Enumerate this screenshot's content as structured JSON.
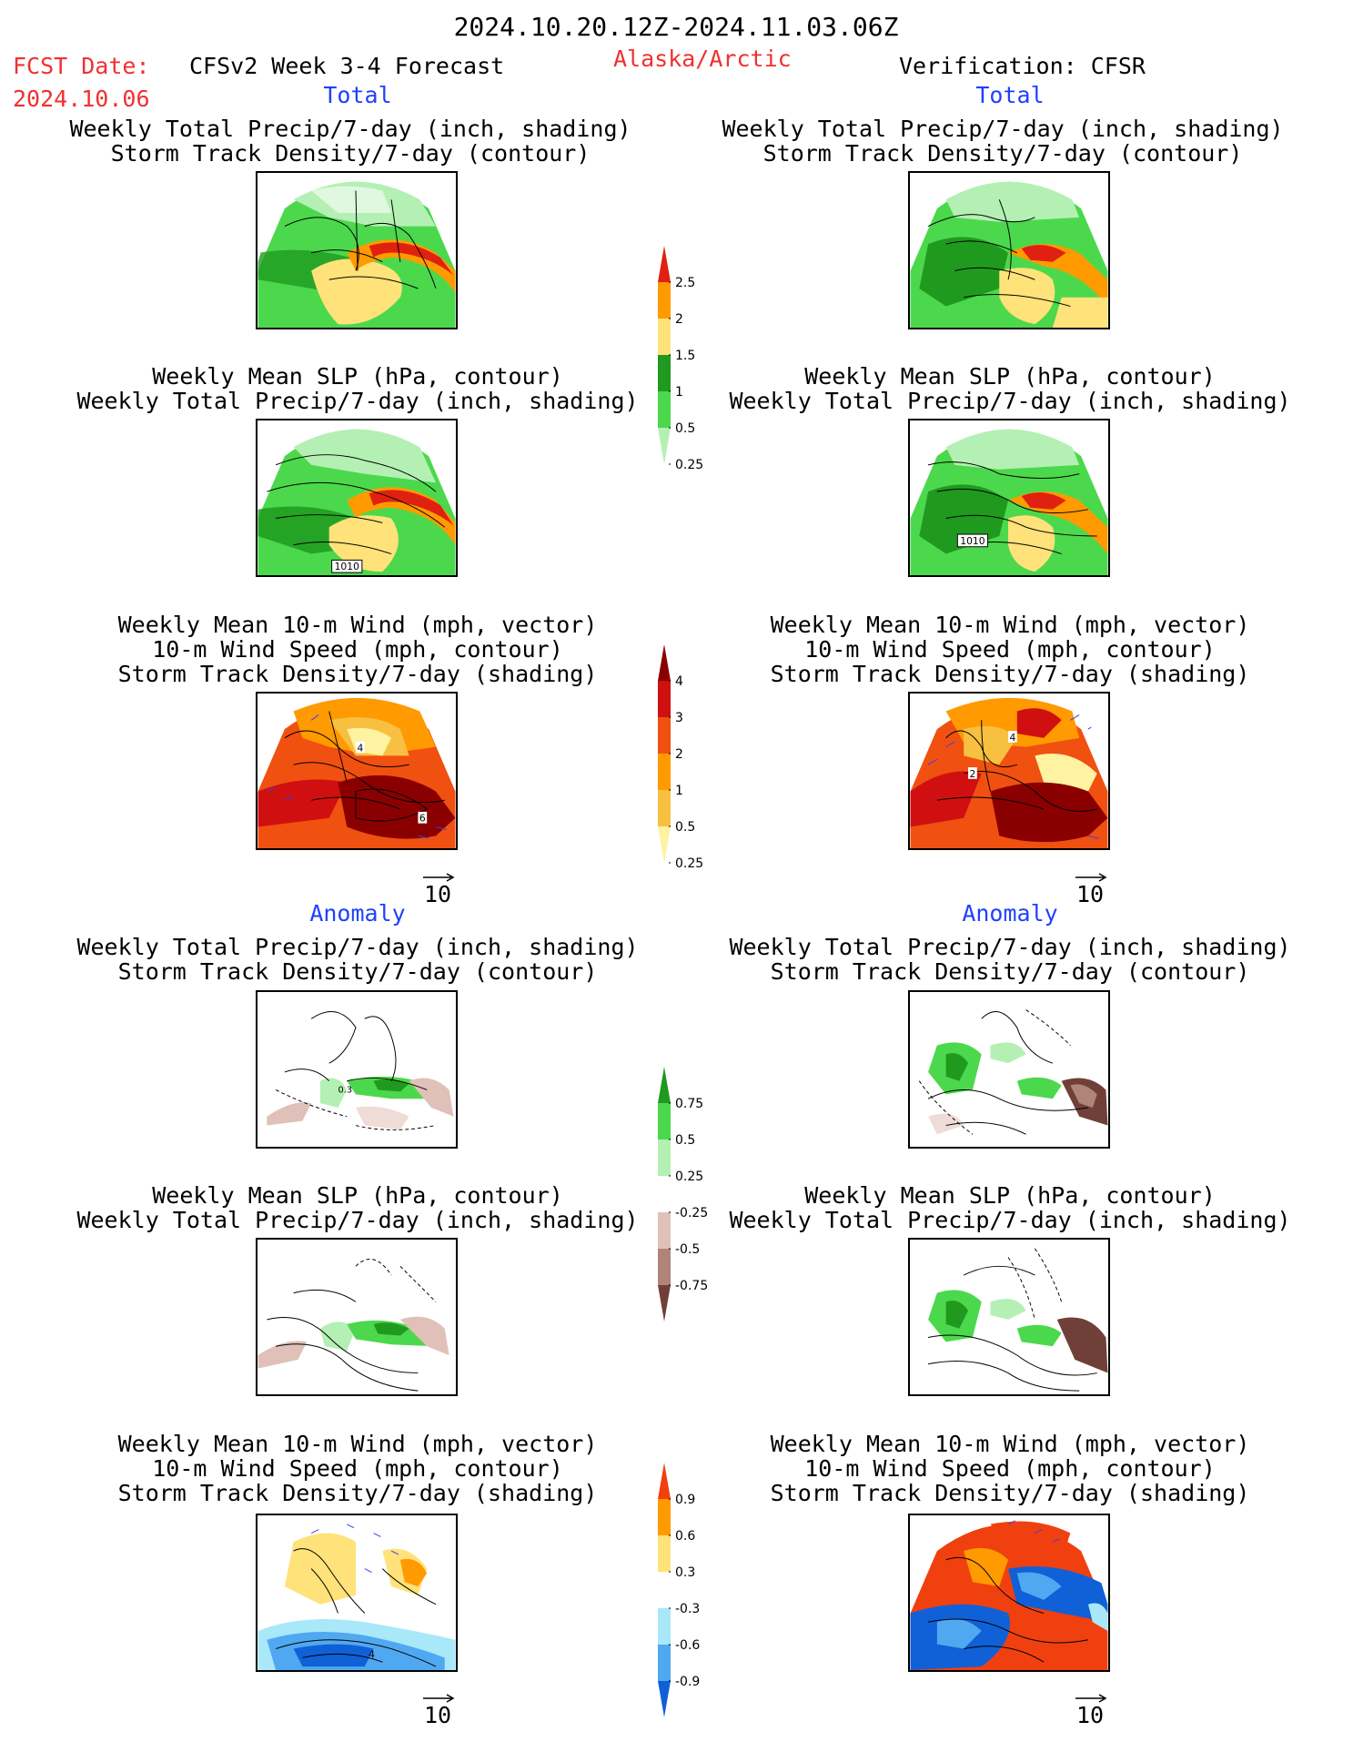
{
  "header": {
    "period": "2024.10.20.12Z-2024.11.03.06Z",
    "fcst_label": "FCST Date:",
    "fcst_date": "2024.10.06",
    "model": "CFSv2 Week 3-4 Forecast",
    "region": "Alaska/Arctic",
    "verification": "Verification: CFSR"
  },
  "sections": {
    "total": "Total",
    "anomaly": "Anomaly"
  },
  "titles": {
    "precip_storm": [
      "Weekly Total Precip/7-day (inch, shading)",
      "Storm Track Density/7-day (contour)"
    ],
    "slp_precip": [
      "Weekly Mean SLP (hPa, contour)",
      "Weekly Total Precip/7-day (inch, shading)"
    ],
    "wind_storm": [
      "Weekly Mean 10-m Wind (mph, vector)",
      "10-m Wind Speed (mph, contour)",
      "Storm Track Density/7-day (shading)"
    ]
  },
  "panel_labels": {
    "slp_left": "1010",
    "slp_right": "1010",
    "wind_left_a": "4",
    "wind_left_b": "6",
    "wind_right_a": "4",
    "wind_right_b": "2",
    "anom_left": "0.3",
    "anom_wind_left": "4"
  },
  "vector_ref": "10",
  "colorbars": {
    "precip_total": {
      "labels": [
        "2.5",
        "2",
        "1.5",
        "1",
        "0.5",
        "0.25"
      ],
      "colors": [
        "#e02010",
        "#ff9a00",
        "#ffe27a",
        "#1f9a1f",
        "#4cd84c",
        "#b4f0b4"
      ]
    },
    "storm_total": {
      "labels": [
        "4",
        "3",
        "2",
        "1",
        "0.5",
        "0.25"
      ],
      "colors": [
        "#8a0000",
        "#d01010",
        "#f05010",
        "#ff9a00",
        "#f8c040",
        "#fff2a0"
      ]
    },
    "precip_anom": {
      "labels": [
        "0.75",
        "0.5",
        "0.25",
        "-0.25",
        "-0.5",
        "-0.75"
      ],
      "colors": [
        "#1f9a1f",
        "#4cd84c",
        "#b4f0b4",
        "#ffffff",
        "#e0c0b8",
        "#b08478",
        "#704038"
      ]
    },
    "storm_anom": {
      "labels": [
        "0.9",
        "0.6",
        "0.3",
        "-0.3",
        "-0.6",
        "-0.9"
      ],
      "colors": [
        "#f04010",
        "#ff9a00",
        "#ffe27a",
        "#ffffff",
        "#a8e8f8",
        "#50a8f0",
        "#1060d8"
      ]
    }
  }
}
